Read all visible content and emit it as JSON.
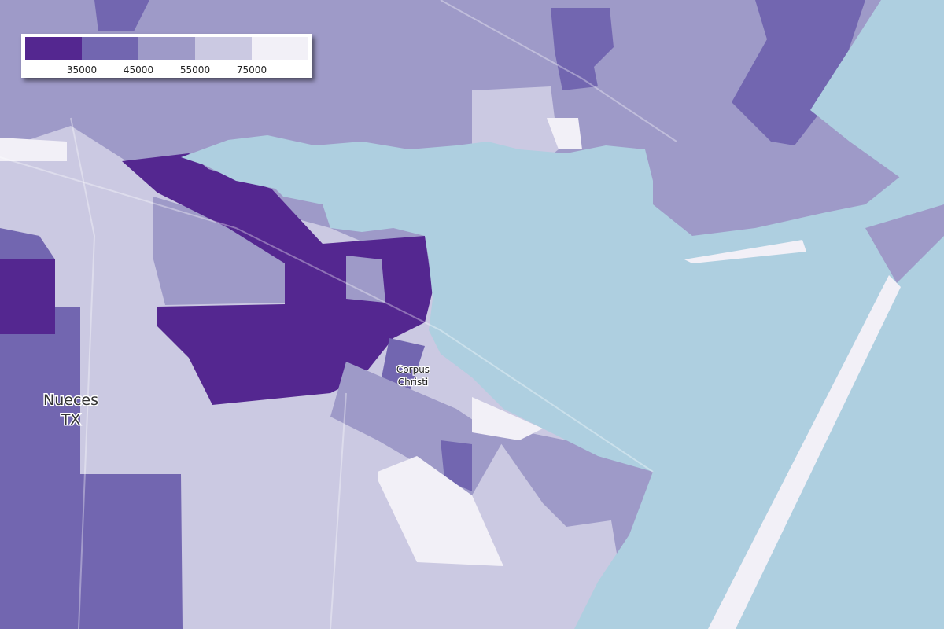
{
  "legend": {
    "colors": [
      "#542790",
      "#7266b0",
      "#9e9ac8",
      "#cbc9e2",
      "#f2f0f7"
    ],
    "ticks": [
      35000,
      45000,
      55000,
      75000
    ]
  },
  "labels": {
    "county": [
      "Nueces",
      "TX"
    ],
    "city": [
      "Corpus",
      "Christi"
    ]
  }
}
